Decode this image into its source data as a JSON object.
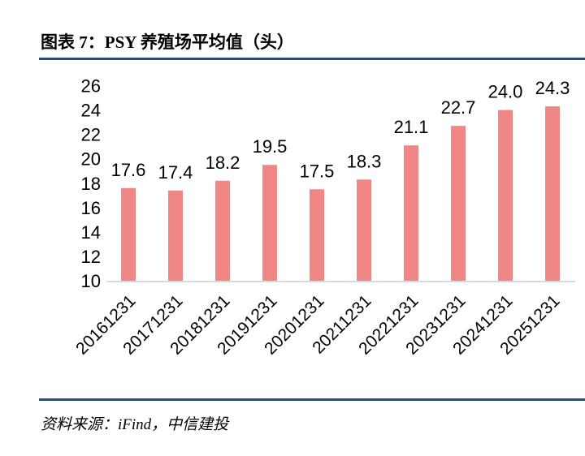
{
  "title": "图表 7：PSY 养殖场平均值（头）",
  "source": "资料来源：iFind，中信建投",
  "chart_data": {
    "type": "bar",
    "categories": [
      "20161231",
      "20171231",
      "20181231",
      "20191231",
      "20201231",
      "20211231",
      "20221231",
      "20231231",
      "20241231",
      "20251231"
    ],
    "values": [
      17.6,
      17.4,
      18.2,
      19.5,
      17.5,
      18.3,
      21.1,
      22.7,
      24.0,
      24.3
    ],
    "ylim": [
      10,
      26
    ],
    "yticks": [
      10,
      12,
      14,
      16,
      18,
      20,
      22,
      24,
      26
    ],
    "bar_color": "#f08784",
    "grid": false,
    "data_labels": true
  }
}
